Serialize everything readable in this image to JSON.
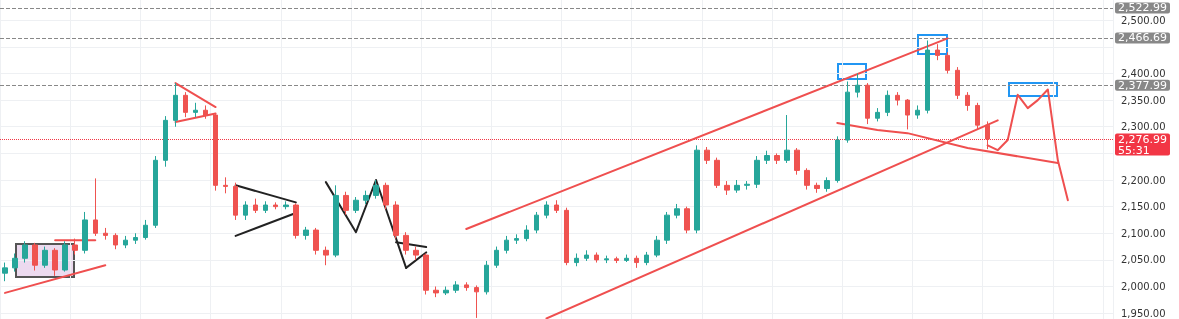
{
  "chart_data": {
    "type": "candlestick",
    "categories": [
      null,
      null,
      null,
      null,
      null,
      null,
      null,
      null,
      null,
      null,
      null,
      null,
      null,
      null,
      null,
      null,
      null,
      null,
      null,
      null,
      null,
      null,
      null,
      null,
      null,
      null,
      null,
      null,
      null,
      null,
      null,
      null,
      null,
      null,
      null,
      null,
      null,
      null,
      null,
      null,
      null,
      null,
      null,
      null,
      null,
      null,
      null,
      null,
      null,
      null,
      null,
      null,
      null,
      null,
      null,
      null,
      null,
      null,
      null,
      null,
      null,
      null,
      null,
      null,
      null,
      null,
      null,
      null,
      null,
      null,
      null,
      null,
      null,
      null,
      null,
      null,
      null,
      null,
      null,
      null,
      null,
      null,
      null,
      null,
      null,
      null,
      null,
      null,
      null,
      null,
      null,
      null,
      null,
      null,
      null,
      null,
      null,
      null,
      null,
      null,
      null,
      null,
      null,
      null,
      null,
      null,
      null,
      null,
      null,
      null,
      null
    ],
    "ohlc": [
      [
        2025,
        2045,
        2010,
        2035
      ],
      [
        2035,
        2062,
        2028,
        2053
      ],
      [
        2053,
        2085,
        2045,
        2078
      ],
      [
        2078,
        2082,
        2030,
        2040
      ],
      [
        2040,
        2075,
        2035,
        2068
      ],
      [
        2068,
        2072,
        2020,
        2031
      ],
      [
        2031,
        2085,
        2028,
        2078
      ],
      [
        2078,
        2090,
        2060,
        2068
      ],
      [
        2068,
        2140,
        2062,
        2125
      ],
      [
        2125,
        2203,
        2095,
        2100
      ],
      [
        2100,
        2110,
        2088,
        2096
      ],
      [
        2096,
        2100,
        2070,
        2078
      ],
      [
        2078,
        2095,
        2072,
        2087
      ],
      [
        2087,
        2100,
        2080,
        2092
      ],
      [
        2092,
        2125,
        2088,
        2115
      ],
      [
        2115,
        2245,
        2110,
        2237
      ],
      [
        2237,
        2320,
        2225,
        2312
      ],
      [
        2312,
        2382,
        2300,
        2359
      ],
      [
        2359,
        2365,
        2318,
        2327
      ],
      [
        2327,
        2345,
        2318,
        2331
      ],
      [
        2331,
        2340,
        2315,
        2322
      ],
      [
        2322,
        2325,
        2180,
        2190
      ],
      [
        2190,
        2205,
        2175,
        2188
      ],
      [
        2188,
        2195,
        2125,
        2134
      ],
      [
        2134,
        2160,
        2125,
        2153
      ],
      [
        2153,
        2165,
        2138,
        2143
      ],
      [
        2143,
        2160,
        2138,
        2153
      ],
      [
        2153,
        2158,
        2145,
        2150
      ],
      [
        2150,
        2160,
        2145,
        2153
      ],
      [
        2153,
        2156,
        2090,
        2096
      ],
      [
        2096,
        2112,
        2088,
        2106
      ],
      [
        2106,
        2110,
        2060,
        2068
      ],
      [
        2068,
        2075,
        2040,
        2059
      ],
      [
        2059,
        2190,
        2055,
        2171
      ],
      [
        2171,
        2178,
        2135,
        2143
      ],
      [
        2143,
        2168,
        2138,
        2162
      ],
      [
        2162,
        2180,
        2155,
        2171
      ],
      [
        2171,
        2200,
        2165,
        2190
      ],
      [
        2190,
        2195,
        2145,
        2153
      ],
      [
        2153,
        2160,
        2090,
        2096
      ],
      [
        2096,
        2102,
        2060,
        2068
      ],
      [
        2068,
        2075,
        2050,
        2059
      ],
      [
        2059,
        2062,
        1985,
        1993
      ],
      [
        1993,
        2000,
        1980,
        1988
      ],
      [
        1988,
        2000,
        1984,
        1993
      ],
      [
        1993,
        2010,
        1988,
        2003
      ],
      [
        2003,
        2008,
        1992,
        1998
      ],
      [
        1998,
        2002,
        1941,
        1990
      ],
      [
        1990,
        2048,
        1985,
        2040
      ],
      [
        2040,
        2075,
        2035,
        2068
      ],
      [
        2068,
        2095,
        2062,
        2087
      ],
      [
        2087,
        2098,
        2080,
        2090
      ],
      [
        2090,
        2115,
        2085,
        2106
      ],
      [
        2106,
        2140,
        2100,
        2134
      ],
      [
        2134,
        2160,
        2128,
        2153
      ],
      [
        2153,
        2162,
        2138,
        2143
      ],
      [
        2143,
        2148,
        2040,
        2045
      ],
      [
        2045,
        2062,
        2038,
        2053
      ],
      [
        2053,
        2068,
        2048,
        2059
      ],
      [
        2059,
        2064,
        2045,
        2050
      ],
      [
        2050,
        2058,
        2044,
        2052
      ],
      [
        2052,
        2056,
        2044,
        2049
      ],
      [
        2049,
        2060,
        2046,
        2053
      ],
      [
        2053,
        2058,
        2035,
        2045
      ],
      [
        2045,
        2065,
        2040,
        2059
      ],
      [
        2059,
        2095,
        2055,
        2087
      ],
      [
        2087,
        2140,
        2080,
        2134
      ],
      [
        2134,
        2155,
        2128,
        2146
      ],
      [
        2146,
        2150,
        2100,
        2106
      ],
      [
        2106,
        2265,
        2100,
        2256
      ],
      [
        2256,
        2262,
        2230,
        2237
      ],
      [
        2237,
        2242,
        2185,
        2190
      ],
      [
        2190,
        2198,
        2172,
        2181
      ],
      [
        2181,
        2200,
        2176,
        2190
      ],
      [
        2190,
        2198,
        2182,
        2192
      ],
      [
        2192,
        2245,
        2185,
        2237
      ],
      [
        2237,
        2255,
        2230,
        2246
      ],
      [
        2246,
        2250,
        2230,
        2237
      ],
      [
        2237,
        2322,
        2232,
        2256
      ],
      [
        2256,
        2260,
        2210,
        2218
      ],
      [
        2218,
        2222,
        2182,
        2190
      ],
      [
        2190,
        2195,
        2176,
        2184
      ],
      [
        2184,
        2205,
        2178,
        2199
      ],
      [
        2199,
        2282,
        2195,
        2275
      ],
      [
        2275,
        2385,
        2270,
        2365
      ],
      [
        2365,
        2400,
        2355,
        2378
      ],
      [
        2378,
        2382,
        2305,
        2316
      ],
      [
        2316,
        2335,
        2310,
        2327
      ],
      [
        2327,
        2368,
        2320,
        2359
      ],
      [
        2359,
        2365,
        2340,
        2350
      ],
      [
        2350,
        2352,
        2295,
        2322
      ],
      [
        2322,
        2340,
        2315,
        2331
      ],
      [
        2331,
        2462,
        2325,
        2444
      ],
      [
        2444,
        2455,
        2425,
        2434
      ],
      [
        2434,
        2440,
        2400,
        2406
      ],
      [
        2406,
        2412,
        2352,
        2359
      ],
      [
        2359,
        2365,
        2330,
        2340
      ],
      [
        2340,
        2345,
        2295,
        2303
      ],
      [
        2303,
        2310,
        2258,
        2277
      ],
      null,
      null,
      null,
      null,
      null,
      null,
      null,
      null,
      null,
      null,
      null,
      null
    ],
    "colors": [
      "#26a69a",
      "#26a69a",
      "#26a69a",
      "#ef5350",
      "#26a69a",
      "#ef5350",
      "#26a69a",
      "#ef5350",
      "#26a69a",
      "#ef5350",
      "#ef5350",
      "#ef5350",
      "#26a69a",
      "#26a69a",
      "#26a69a",
      "#26a69a",
      "#26a69a",
      "#26a69a",
      "#ef5350",
      "#26a69a",
      "#ef5350",
      "#ef5350",
      "#ef5350",
      "#ef5350",
      "#26a69a",
      "#ef5350",
      "#26a69a",
      "#ef5350",
      "#26a69a",
      "#ef5350",
      "#26a69a",
      "#ef5350",
      "#ef5350",
      "#26a69a",
      "#ef5350",
      "#26a69a",
      "#26a69a",
      "#26a69a",
      "#ef5350",
      "#ef5350",
      "#ef5350",
      "#ef5350",
      "#ef5350",
      "#ef5350",
      "#26a69a",
      "#26a69a",
      "#ef5350",
      "#ef5350",
      "#26a69a",
      "#26a69a",
      "#26a69a",
      "#26a69a",
      "#26a69a",
      "#26a69a",
      "#26a69a",
      "#ef5350",
      "#ef5350",
      "#26a69a",
      "#26a69a",
      "#ef5350",
      "#26a69a",
      "#ef5350",
      "#26a69a",
      "#ef5350",
      "#26a69a",
      "#26a69a",
      "#26a69a",
      "#26a69a",
      "#ef5350",
      "#26a69a",
      "#ef5350",
      "#ef5350",
      "#ef5350",
      "#26a69a",
      "#26a69a",
      "#26a69a",
      "#26a69a",
      "#ef5350",
      "#26a69a",
      "#ef5350",
      "#ef5350",
      "#ef5350",
      "#26a69a",
      "#26a69a",
      "#26a69a",
      "#26a69a",
      "#ef5350",
      "#26a69a",
      "#26a69a",
      "#ef5350",
      "#ef5350",
      "#26a69a",
      "#26a69a",
      "#ef5350",
      "#ef5350",
      "#ef5350",
      "#ef5350",
      "#ef5350",
      "#ef5350",
      null,
      null,
      null,
      null,
      null,
      null,
      null,
      null,
      null,
      null,
      null,
      null
    ],
    "series": [
      {
        "type": "line",
        "color": "#ef4f4f",
        "values": [
          1988,
          null,
          null,
          null,
          null,
          null,
          null,
          null,
          null,
          null,
          2040,
          null,
          null,
          null,
          null,
          null,
          null,
          null,
          null,
          null,
          null,
          null,
          null,
          null,
          null,
          null,
          null,
          null,
          null,
          null,
          null,
          null,
          null,
          null,
          null,
          null,
          null,
          null,
          null,
          null,
          null,
          null,
          null,
          null,
          null,
          null,
          null,
          null,
          null,
          null,
          null,
          null,
          null,
          null,
          null,
          null,
          null,
          null,
          null,
          null,
          null,
          null,
          null,
          null,
          null,
          null,
          null,
          null,
          null,
          null,
          null,
          null,
          null,
          null,
          null,
          null,
          null,
          null,
          null,
          null,
          null,
          null,
          null,
          null,
          null,
          null,
          null,
          null,
          null,
          null,
          null,
          null,
          null,
          null,
          null,
          null,
          null,
          null,
          null,
          null,
          null,
          null,
          null,
          null,
          null,
          null,
          null,
          null,
          null,
          null,
          null
        ]
      },
      {
        "type": "line",
        "color": "#ef4f4f",
        "values": [
          null,
          null,
          null,
          null,
          null,
          2087,
          null,
          null,
          null,
          2087,
          null,
          null,
          null,
          null,
          null,
          null,
          null,
          null,
          null,
          null,
          null,
          null,
          null,
          null,
          null,
          null,
          null,
          null,
          null,
          null,
          null,
          null,
          null,
          null,
          null,
          null,
          null,
          null,
          null,
          null,
          null,
          null,
          null,
          null,
          null,
          null,
          null,
          null,
          null,
          null,
          null,
          null,
          null,
          null,
          null,
          null,
          null,
          null,
          null,
          null,
          null,
          null,
          null,
          null,
          null,
          null,
          null,
          null,
          null,
          null,
          null,
          null,
          null,
          null,
          null,
          null,
          null,
          null,
          null,
          null,
          null,
          null,
          null,
          null,
          null,
          null,
          null,
          null,
          null,
          null,
          null,
          null,
          null,
          null,
          null,
          null,
          null,
          null,
          null,
          null,
          null,
          null,
          null,
          null,
          null,
          null,
          null,
          null,
          null,
          null,
          null
        ]
      },
      {
        "type": "line",
        "color": "#ef4f4f",
        "values": [
          null,
          null,
          null,
          null,
          null,
          null,
          null,
          null,
          null,
          null,
          null,
          null,
          null,
          null,
          null,
          null,
          null,
          2382,
          null,
          null,
          null,
          2337,
          null,
          null,
          null,
          null,
          null,
          null,
          null,
          null,
          null,
          null,
          null,
          null,
          null,
          null,
          null,
          null,
          null,
          null,
          null,
          null,
          null,
          null,
          null,
          null,
          null,
          null,
          null,
          null,
          null,
          null,
          null,
          null,
          null,
          null,
          null,
          null,
          null,
          null,
          null,
          null,
          null,
          null,
          null,
          null,
          null,
          null,
          null,
          null,
          null,
          null,
          null,
          null,
          null,
          null,
          null,
          null,
          null,
          null,
          null,
          null,
          null,
          null,
          null,
          null,
          null,
          null,
          null,
          null,
          null,
          null,
          null,
          null,
          null,
          null,
          null,
          null,
          null,
          null,
          null,
          null,
          null,
          null,
          null,
          null,
          null,
          null,
          null,
          null,
          null
        ]
      },
      {
        "type": "line",
        "color": "#ef4f4f",
        "values": [
          null,
          null,
          null,
          null,
          null,
          null,
          null,
          null,
          null,
          null,
          null,
          null,
          null,
          null,
          null,
          null,
          null,
          2309,
          null,
          null,
          null,
          2325,
          null,
          null,
          null,
          null,
          null,
          null,
          null,
          null,
          null,
          null,
          null,
          null,
          null,
          null,
          null,
          null,
          null,
          null,
          null,
          null,
          null,
          null,
          null,
          null,
          null,
          null,
          null,
          null,
          null,
          null,
          null,
          null,
          null,
          null,
          null,
          null,
          null,
          null,
          null,
          null,
          null,
          null,
          null,
          null,
          null,
          null,
          null,
          null,
          null,
          null,
          null,
          null,
          null,
          null,
          null,
          null,
          null,
          null,
          null,
          null,
          null,
          null,
          null,
          null,
          null,
          null,
          null,
          null,
          null,
          null,
          null,
          null,
          null,
          null,
          null,
          null,
          null,
          null,
          null,
          null,
          null,
          null,
          null,
          null,
          null,
          null,
          null,
          null,
          null
        ]
      },
      {
        "type": "line",
        "color": "#222222",
        "values": [
          null,
          null,
          null,
          null,
          null,
          null,
          null,
          null,
          null,
          null,
          null,
          null,
          null,
          null,
          null,
          null,
          null,
          null,
          null,
          null,
          null,
          null,
          null,
          2190,
          null,
          null,
          null,
          null,
          null,
          2158,
          null,
          null,
          null,
          null,
          null,
          null,
          null,
          null,
          null,
          null,
          null,
          null,
          null,
          null,
          null,
          null,
          null,
          null,
          null,
          null,
          null,
          null,
          null,
          null,
          null,
          null,
          null,
          null,
          null,
          null,
          null,
          null,
          null,
          null,
          null,
          null,
          null,
          null,
          null,
          null,
          null,
          null,
          null,
          null,
          null,
          null,
          null,
          null,
          null,
          null,
          null,
          null,
          null,
          null,
          null,
          null,
          null,
          null,
          null,
          null,
          null,
          null,
          null,
          null,
          null,
          null,
          null,
          null,
          null,
          null,
          null,
          null,
          null,
          null,
          null,
          null,
          null,
          null,
          null,
          null,
          null
        ]
      },
      {
        "type": "line",
        "color": "#222222",
        "values": [
          null,
          null,
          null,
          null,
          null,
          null,
          null,
          null,
          null,
          null,
          null,
          null,
          null,
          null,
          null,
          null,
          null,
          null,
          null,
          null,
          null,
          null,
          null,
          2095,
          null,
          null,
          null,
          null,
          null,
          2138,
          null,
          null,
          null,
          null,
          null,
          null,
          null,
          null,
          null,
          null,
          null,
          null,
          null,
          null,
          null,
          null,
          null,
          null,
          null,
          null,
          null,
          null,
          null,
          null,
          null,
          null,
          null,
          null,
          null,
          null,
          null,
          null,
          null,
          null,
          null,
          null,
          null,
          null,
          null,
          null,
          null,
          null,
          null,
          null,
          null,
          null,
          null,
          null,
          null,
          null,
          null,
          null,
          null,
          null,
          null,
          null,
          null,
          null,
          null,
          null,
          null,
          null,
          null,
          null,
          null,
          null,
          null,
          null,
          null,
          null,
          null,
          null,
          null,
          null,
          null,
          null,
          null,
          null,
          null,
          null,
          null
        ]
      },
      {
        "type": "line",
        "color": "#222222",
        "values": [
          null,
          null,
          null,
          null,
          null,
          null,
          null,
          null,
          null,
          null,
          null,
          null,
          null,
          null,
          null,
          null,
          null,
          null,
          null,
          null,
          null,
          null,
          null,
          null,
          null,
          null,
          null,
          null,
          null,
          null,
          null,
          null,
          2196,
          null,
          null,
          2102,
          null,
          2200,
          null,
          null,
          2035,
          null,
          null,
          null,
          null,
          null,
          null,
          null,
          null,
          null,
          null,
          null,
          null,
          null,
          null,
          null,
          null,
          null,
          null,
          null,
          null,
          null,
          null,
          null,
          null,
          null,
          null,
          null,
          null,
          null,
          null,
          null,
          null,
          null,
          null,
          null,
          null,
          null,
          null,
          null,
          null,
          null,
          null,
          null,
          null,
          null,
          null,
          null,
          null,
          null,
          null,
          null,
          null,
          null,
          null,
          null,
          null,
          null,
          null,
          null,
          null,
          null,
          null,
          null,
          null,
          null,
          null,
          null,
          null,
          null,
          null
        ]
      },
      {
        "type": "line",
        "color": "#222222",
        "values": [
          null,
          null,
          null,
          null,
          null,
          null,
          null,
          null,
          null,
          null,
          null,
          null,
          null,
          null,
          null,
          null,
          null,
          null,
          null,
          null,
          null,
          null,
          null,
          null,
          null,
          null,
          null,
          null,
          null,
          null,
          null,
          null,
          null,
          null,
          null,
          null,
          null,
          null,
          null,
          2083,
          null,
          null,
          2074,
          null,
          null,
          null,
          null,
          null,
          null,
          null,
          null,
          null,
          null,
          null,
          null,
          null,
          null,
          null,
          null,
          null,
          null,
          null,
          null,
          null,
          null,
          null,
          null,
          null,
          null,
          null,
          null,
          null,
          null,
          null,
          null,
          null,
          null,
          null,
          null,
          null,
          null,
          null,
          null,
          null,
          null,
          null,
          null,
          null,
          null,
          null,
          null,
          null,
          null,
          null,
          null,
          null,
          null,
          null,
          null,
          null,
          null,
          null,
          null,
          null,
          null,
          null,
          null,
          null,
          null,
          null,
          null
        ]
      },
      {
        "type": "line",
        "color": "#222222",
        "values": [
          null,
          null,
          null,
          null,
          null,
          null,
          null,
          null,
          null,
          null,
          null,
          null,
          null,
          null,
          null,
          null,
          null,
          null,
          null,
          null,
          null,
          null,
          null,
          null,
          null,
          null,
          null,
          null,
          null,
          null,
          null,
          null,
          null,
          null,
          null,
          null,
          null,
          null,
          null,
          null,
          2035,
          null,
          2064,
          null,
          null,
          null,
          null,
          null,
          null,
          null,
          null,
          null,
          null,
          null,
          null,
          null,
          null,
          null,
          null,
          null,
          null,
          null,
          null,
          null,
          null,
          null,
          null,
          null,
          null,
          null,
          null,
          null,
          null,
          null,
          null,
          null,
          null,
          null,
          null,
          null,
          null,
          null,
          null,
          null,
          null,
          null,
          null,
          null,
          null,
          null,
          null,
          null,
          null,
          null,
          null,
          null,
          null,
          null,
          null,
          null,
          null,
          null,
          null,
          null,
          null,
          null,
          null,
          null,
          null,
          null,
          null
        ]
      },
      {
        "type": "line",
        "color": "#ef4f4f",
        "values": [
          null,
          null,
          null,
          null,
          null,
          null,
          null,
          null,
          null,
          null,
          null,
          null,
          null,
          null,
          null,
          null,
          null,
          null,
          null,
          null,
          null,
          null,
          null,
          null,
          null,
          null,
          null,
          null,
          null,
          null,
          null,
          null,
          null,
          null,
          null,
          null,
          null,
          null,
          null,
          null,
          null,
          null,
          null,
          null,
          null,
          null,
          2108,
          null,
          null,
          null,
          null,
          null,
          null,
          null,
          null,
          null,
          null,
          null,
          null,
          null,
          null,
          null,
          null,
          null,
          null,
          null,
          null,
          null,
          null,
          null,
          null,
          null,
          null,
          null,
          null,
          null,
          null,
          null,
          null,
          null,
          null,
          null,
          null,
          null,
          null,
          null,
          null,
          null,
          null,
          null,
          null,
          null,
          null,
          null,
          2466,
          null,
          null,
          null,
          null,
          null,
          null,
          null,
          null,
          null,
          null,
          null,
          null,
          null,
          null,
          null,
          null
        ]
      },
      {
        "type": "line",
        "color": "#ef4f4f",
        "values": [
          null,
          null,
          null,
          null,
          null,
          null,
          null,
          null,
          null,
          null,
          null,
          null,
          null,
          null,
          null,
          null,
          null,
          null,
          null,
          null,
          null,
          null,
          null,
          null,
          null,
          null,
          null,
          null,
          null,
          null,
          null,
          null,
          null,
          null,
          null,
          null,
          null,
          null,
          null,
          null,
          null,
          null,
          null,
          null,
          null,
          null,
          null,
          null,
          null,
          null,
          null,
          null,
          null,
          null,
          1940,
          null,
          null,
          null,
          null,
          null,
          null,
          null,
          null,
          null,
          null,
          null,
          null,
          null,
          null,
          null,
          null,
          null,
          null,
          null,
          null,
          null,
          null,
          null,
          null,
          null,
          null,
          null,
          null,
          null,
          null,
          null,
          null,
          null,
          null,
          null,
          null,
          null,
          null,
          null,
          null,
          null,
          null,
          null,
          null,
          2312,
          null,
          null,
          null,
          null,
          null,
          null,
          null,
          null,
          null,
          null,
          null
        ]
      },
      {
        "type": "line",
        "color": "#ef4f4f",
        "values": [
          null,
          null,
          null,
          null,
          null,
          null,
          null,
          null,
          null,
          null,
          null,
          null,
          null,
          null,
          null,
          null,
          null,
          null,
          null,
          null,
          null,
          null,
          null,
          null,
          null,
          null,
          null,
          null,
          null,
          null,
          null,
          null,
          null,
          null,
          null,
          null,
          null,
          null,
          null,
          null,
          null,
          null,
          null,
          null,
          null,
          null,
          null,
          null,
          null,
          null,
          null,
          null,
          null,
          null,
          null,
          null,
          null,
          null,
          null,
          null,
          null,
          null,
          null,
          null,
          null,
          null,
          null,
          null,
          null,
          null,
          null,
          null,
          null,
          null,
          null,
          null,
          null,
          null,
          null,
          null,
          null,
          null,
          null,
          2307,
          null,
          null,
          null,
          2294,
          null,
          null,
          2288,
          null,
          null,
          null,
          null,
          null,
          2260,
          null,
          null,
          null,
          null,
          null,
          null,
          null,
          null,
          2232,
          null,
          null,
          null,
          null,
          null
        ]
      },
      {
        "type": "line",
        "color": "#ef4f4f",
        "values": [
          null,
          null,
          null,
          null,
          null,
          null,
          null,
          null,
          null,
          null,
          null,
          null,
          null,
          null,
          null,
          null,
          null,
          null,
          null,
          null,
          null,
          null,
          null,
          null,
          null,
          null,
          null,
          null,
          null,
          null,
          null,
          null,
          null,
          null,
          null,
          null,
          null,
          null,
          null,
          null,
          null,
          null,
          null,
          null,
          null,
          null,
          null,
          null,
          null,
          null,
          null,
          null,
          null,
          null,
          null,
          null,
          null,
          null,
          null,
          null,
          null,
          null,
          null,
          null,
          null,
          null,
          null,
          null,
          null,
          null,
          null,
          null,
          null,
          null,
          null,
          null,
          null,
          null,
          null,
          null,
          null,
          null,
          null,
          null,
          null,
          null,
          null,
          null,
          null,
          null,
          null,
          null,
          null,
          null,
          null,
          null,
          null,
          null,
          2265,
          2256,
          2275,
          2360,
          2335,
          2350,
          2370,
          2237,
          2162,
          null,
          null,
          null,
          null
        ]
      }
    ],
    "ylim": [
      1939,
      2538
    ],
    "yticks": [
      {
        "value": 1950,
        "label": "1,950.00"
      },
      {
        "value": 2000,
        "label": "2,000.00"
      },
      {
        "value": 2050,
        "label": "2,050.00"
      },
      {
        "value": 2100,
        "label": "2,100.00"
      },
      {
        "value": 2150,
        "label": "2,150.00"
      },
      {
        "value": 2200,
        "label": "2,200.00"
      },
      {
        "value": 2250,
        "label": null
      },
      {
        "value": 2300,
        "label": "2,300.00"
      },
      {
        "value": 2350,
        "label": "2,350.00"
      },
      {
        "value": 2400,
        "label": "2,400.00"
      },
      {
        "value": 2450,
        "label": null
      },
      {
        "value": 2500,
        "label": "2,500.00"
      }
    ],
    "ref_lines": [
      {
        "axis": "y",
        "value": 2522.99,
        "label": "2,522.99",
        "color": "#888888",
        "line_style": "dashed"
      },
      {
        "axis": "y",
        "value": 2466.69,
        "label": "2,466.69",
        "color": "#888888",
        "line_style": "dashed"
      },
      {
        "axis": "y",
        "value": 2377.99,
        "label": "2,377.99",
        "color": "#888888",
        "line_style": "dashed"
      },
      {
        "axis": "y",
        "value": 2276.99,
        "label": "2,276.99\n55:31",
        "color": "#f23645",
        "line_style": "dotted"
      }
    ],
    "grid": true,
    "tick_labels": "y"
  }
}
